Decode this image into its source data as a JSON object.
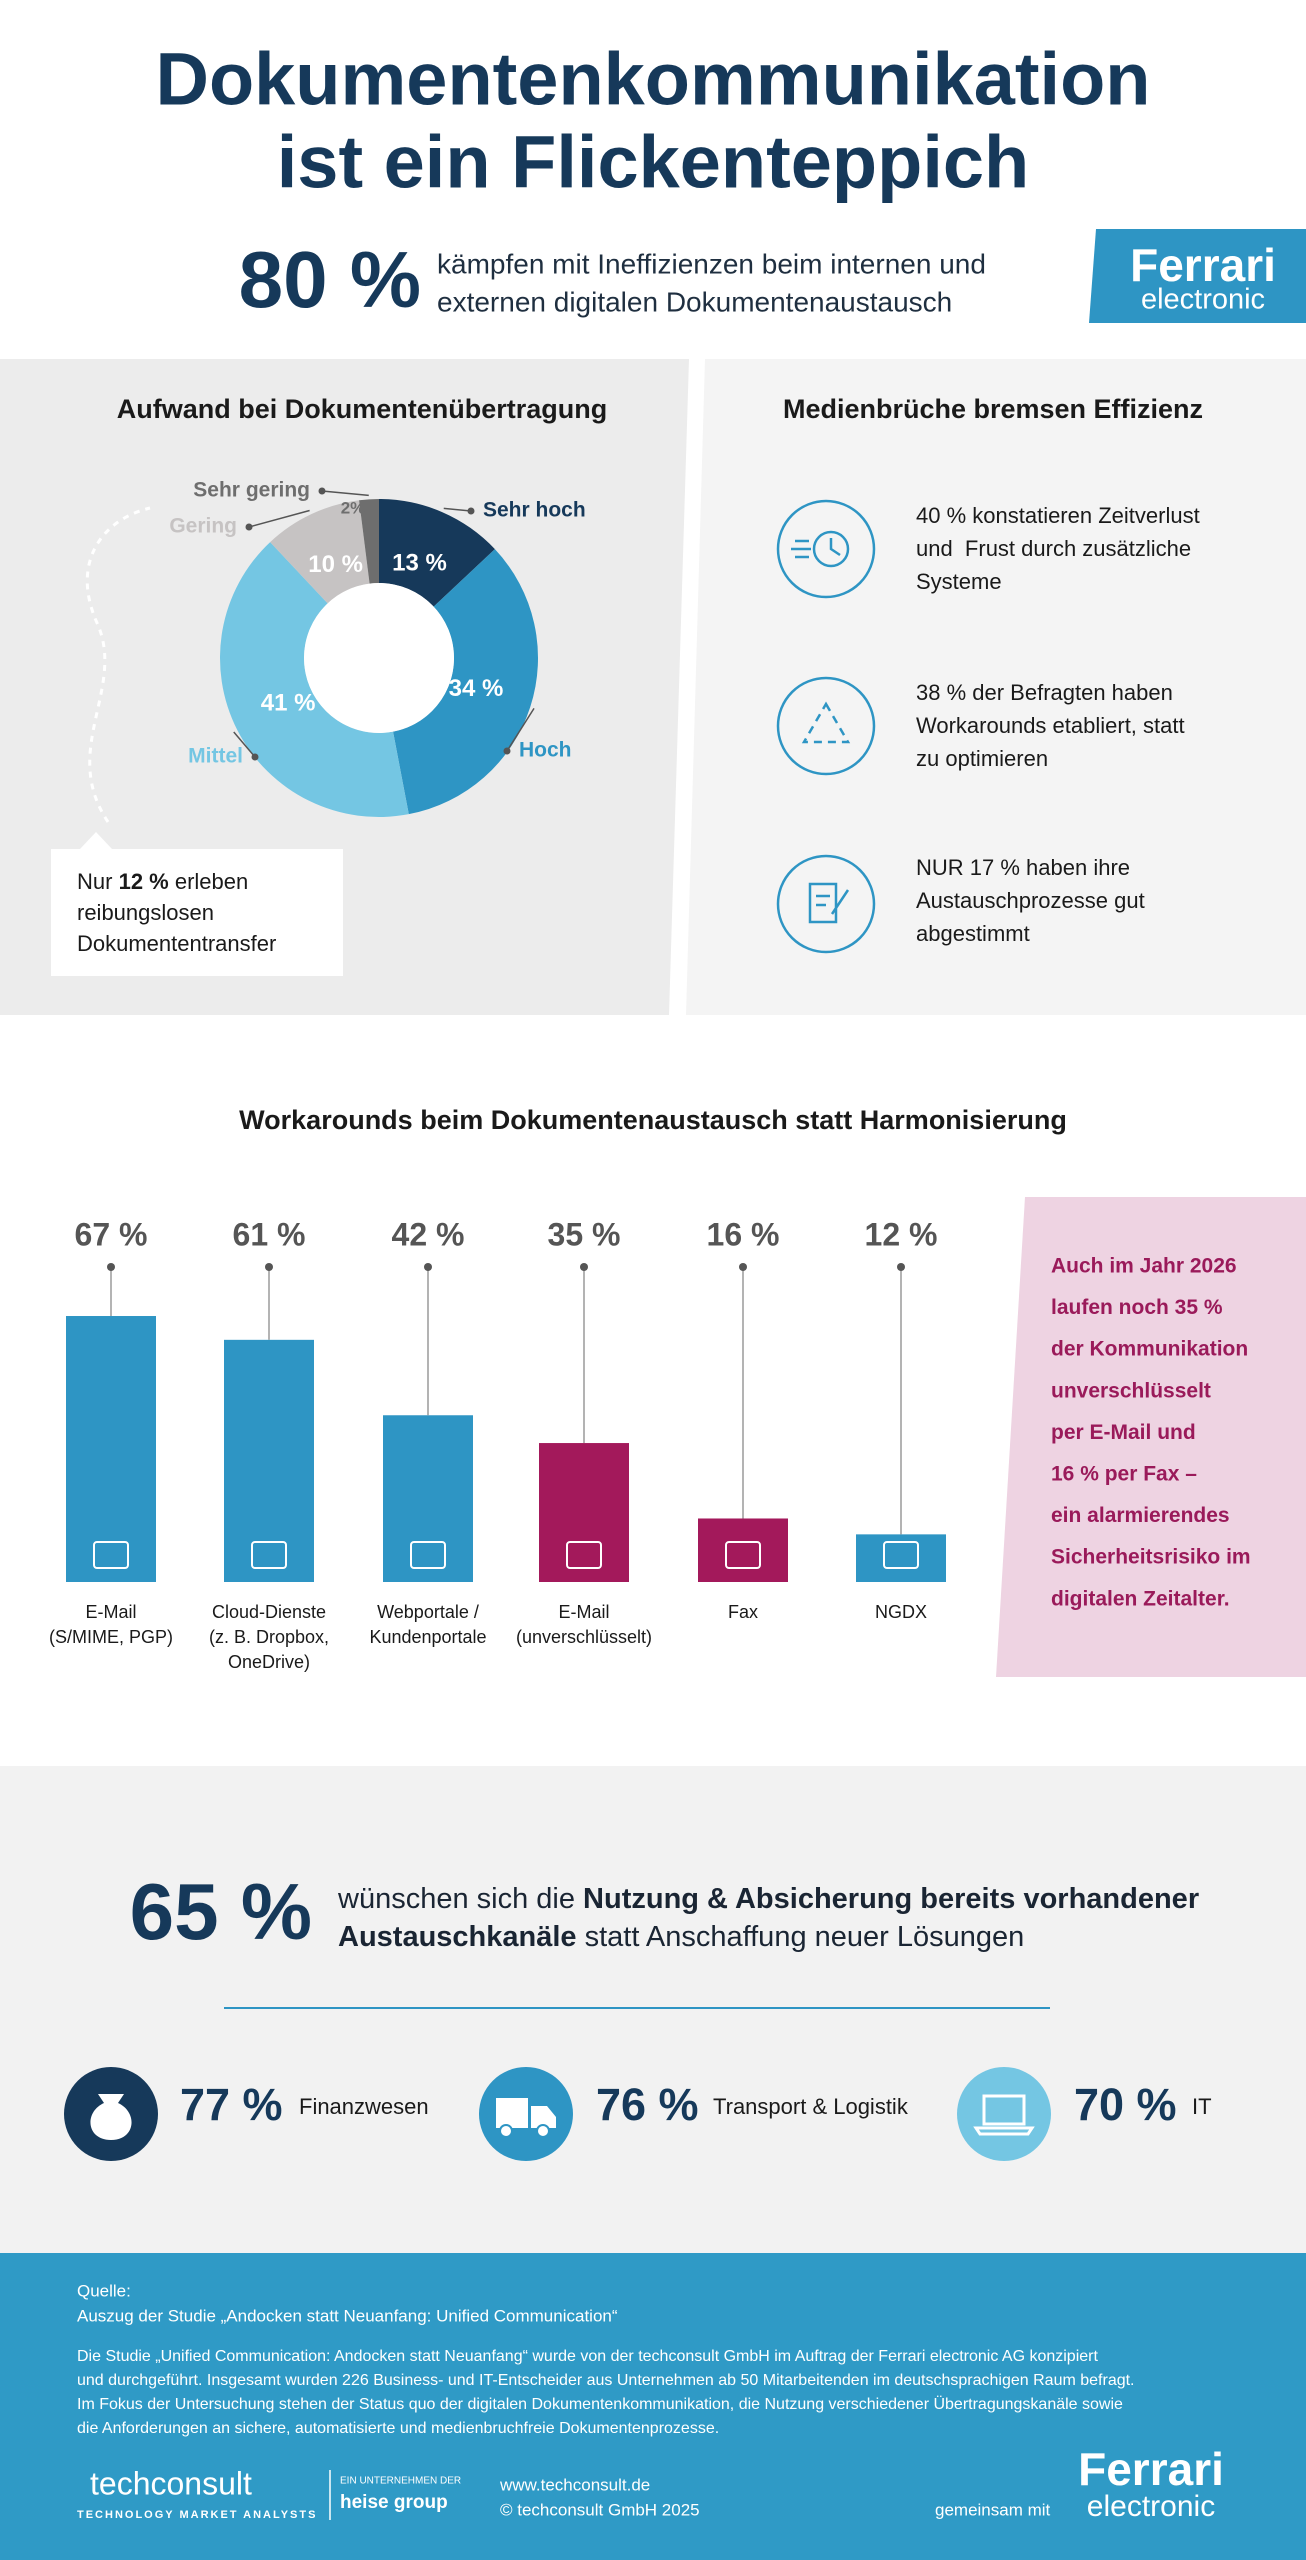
{
  "header": {
    "title": [
      "Dokumentenkommunikation",
      "ist ein Flickenteppich"
    ],
    "stat": "80 %",
    "stat_text": [
      "kämpfen mit Ineffizienzen beim internen und",
      "externen digitalen Dokumentenaustausch"
    ]
  },
  "logo": {
    "name": "Ferrari",
    "sub": "electronic"
  },
  "chart_data": [
    {
      "type": "donut",
      "title": "Aufwand bei Dokumentenübertragung",
      "categories": [
        "Sehr hoch",
        "Hoch",
        "Mittel",
        "Gering",
        "Sehr gering"
      ],
      "values": [
        13,
        34,
        41,
        10,
        2
      ],
      "value_labels": [
        "13 %",
        "34 %",
        "41 %",
        "10 %",
        "2%"
      ],
      "colors": [
        "#16395a",
        "#2e95c4",
        "#74c6e3",
        "#c6c3c3",
        "#6e6e6e"
      ]
    },
    {
      "type": "bar",
      "title": "Workarounds beim Dokumentenaustausch statt Harmonisierung",
      "categories": [
        [
          "E-Mail",
          "(S/MIME, PGP)"
        ],
        [
          "Cloud-Dienste",
          "(z. B. Dropbox,",
          "OneDrive)"
        ],
        [
          "Webportale /",
          "Kundenportale"
        ],
        [
          "E-Mail",
          "(unverschlüsselt)"
        ],
        [
          "Fax"
        ],
        [
          "NGDX"
        ]
      ],
      "values": [
        67,
        61,
        42,
        35,
        16,
        12
      ],
      "value_labels": [
        "67 %",
        "61 %",
        "42 %",
        "35 %",
        "16 %",
        "12 %"
      ],
      "colors": [
        "#2e95c4",
        "#2e95c4",
        "#2e95c4",
        "#a3195b",
        "#a3195b",
        "#2e95c4"
      ]
    }
  ],
  "donut_note": {
    "before": "Nur",
    "highlight": "12 %",
    "after": "erleben",
    "lines": [
      "reibungslosen",
      "Dokumententransfer"
    ]
  },
  "effizienz": {
    "title": "Medienbrüche bremsen Effizienz",
    "items": [
      [
        "40 % konstatieren Zeitverlust",
        "und  Frust durch zusätzliche",
        "Systeme"
      ],
      [
        "38 % der Befragten haben",
        "Workarounds etabliert, statt",
        "zu optimieren"
      ],
      [
        "NUR 17 % haben ihre",
        "Austauschprozesse gut",
        "abgestimmt"
      ]
    ]
  },
  "alert": [
    "Auch im Jahr 2026",
    "laufen noch 35 %",
    "der Kommunikation",
    "unverschlüsselt",
    "per E-Mail und",
    "16 % per Fax –",
    "ein alarmierendes",
    "Sicherheitsrisiko im",
    "digitalen Zeitalter."
  ],
  "summary": {
    "stat": "65 %",
    "line1": {
      "normal": "wünschen sich die",
      "bold": "Nutzung & Absicherung bereits vorhandener"
    },
    "line2": {
      "bold": "Austauschkanäle",
      "normal": "statt Anschaffung neuer Lösungen"
    }
  },
  "sectors": [
    {
      "value": "77 %",
      "label": "Finanzwesen"
    },
    {
      "value": "76 %",
      "label": "Transport & Logistik"
    },
    {
      "value": "70 %",
      "label": "IT"
    }
  ],
  "footer": {
    "source_label": "Quelle:",
    "source": "Auszug der Studie „Andocken statt Neuanfang: Unified Communication“",
    "paragraph": [
      "Die Studie „Unified Communication: Andocken statt Neuanfang“ wurde von der techconsult GmbH im Auftrag der Ferrari electronic AG konzipiert",
      "und durchgeführt. Insgesamt wurden 226 Business- und IT-Entscheider aus Unternehmen ab 50 Mitarbeitenden im deutschsprachigen Raum befragt.",
      "Im Fokus der Untersuchung stehen der Status quo der digitalen Dokumentenkommunikation, die Nutzung verschiedener Übertragungskanäle sowie",
      "die Anforderungen an sichere, automatisierte und medienbruchfreie Dokumentenprozesse."
    ],
    "brand": "techconsult",
    "brand_tagline": "TECHNOLOGY MARKET ANALYSTS",
    "parent_label": "EIN UNTERNEHMEN DER",
    "parent": "heise group",
    "url": "www.techconsult.de",
    "copyright": "© techconsult GmbH 2025",
    "partner_label": "gemeinsam mit"
  }
}
